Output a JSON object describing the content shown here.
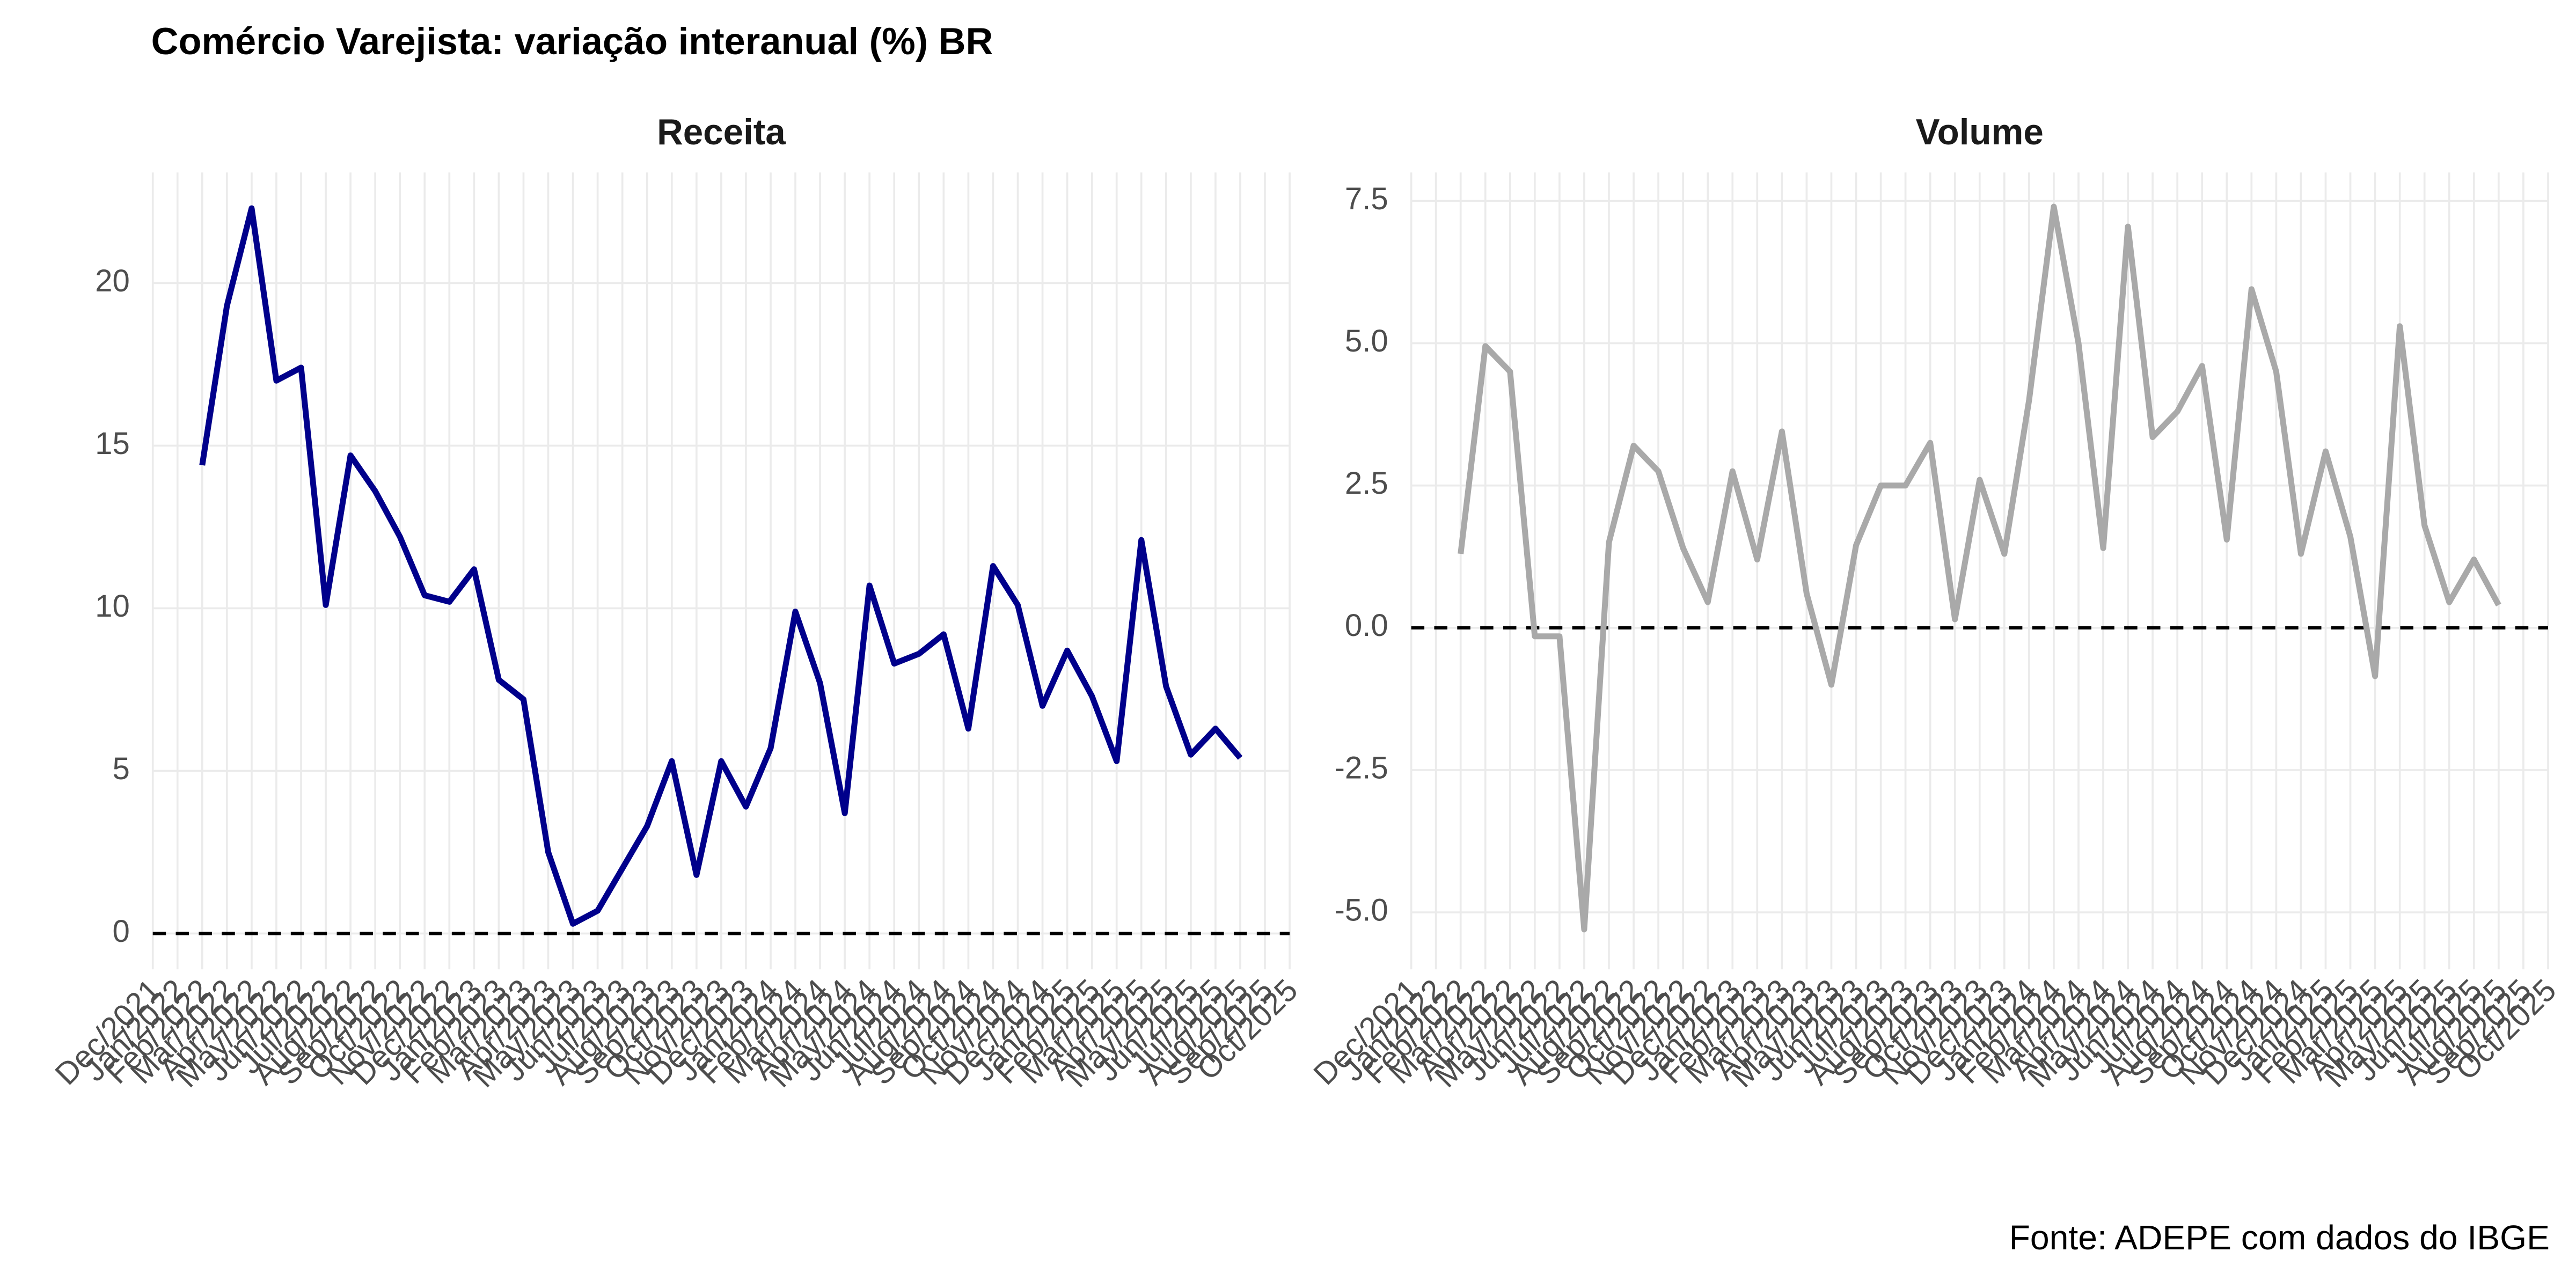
{
  "title": "Comércio Varejista: variação interanual (%) BR",
  "caption": "Fonte: ADEPE com dados do IBGE",
  "chart_data": [
    {
      "type": "line",
      "title": "Receita",
      "color": "#00008B",
      "x": [
        "Feb/2022",
        "Mar/2022",
        "Apr/2022",
        "May/2022",
        "Jun/2022",
        "Jul/2022",
        "Aug/2022",
        "Sep/2022",
        "Oct/2022",
        "Nov/2022",
        "Dec/2022",
        "Jan/2023",
        "Feb/2023",
        "Mar/2023",
        "Apr/2023",
        "May/2023",
        "Jun/2023",
        "Jul/2023",
        "Aug/2023",
        "Sep/2023",
        "Oct/2023",
        "Nov/2023",
        "Dec/2023",
        "Jan/2024",
        "Feb/2024",
        "Mar/2024",
        "Apr/2024",
        "May/2024",
        "Jun/2024",
        "Jul/2024",
        "Aug/2024",
        "Sep/2024",
        "Oct/2024",
        "Nov/2024",
        "Dec/2024",
        "Jan/2025",
        "Feb/2025",
        "Mar/2025",
        "Apr/2025",
        "May/2025",
        "Jun/2025",
        "Jul/2025",
        "Aug/2025"
      ],
      "values": [
        14.4,
        19.3,
        22.3,
        17.0,
        17.4,
        10.1,
        14.7,
        13.6,
        12.2,
        10.4,
        10.2,
        11.2,
        7.8,
        7.2,
        2.5,
        0.3,
        0.7,
        2.0,
        3.3,
        5.3,
        1.8,
        5.3,
        3.9,
        5.7,
        9.9,
        7.7,
        3.7,
        10.7,
        8.3,
        8.6,
        9.2,
        6.3,
        11.3,
        10.1,
        7.0,
        8.7,
        7.3,
        5.3,
        12.1,
        7.6,
        5.5,
        6.3,
        5.4
      ],
      "xticks": [
        "Dec/2021",
        "Jan/2022",
        "Feb/2022",
        "Mar/2022",
        "Apr/2022",
        "May/2022",
        "Jun/2022",
        "Jul/2022",
        "Aug/2022",
        "Sep/2022",
        "Oct/2022",
        "Nov/2022",
        "Dec/2022",
        "Jan/2023",
        "Feb/2023",
        "Mar/2023",
        "Apr/2023",
        "May/2023",
        "Jun/2023",
        "Jul/2023",
        "Aug/2023",
        "Sep/2023",
        "Oct/2023",
        "Nov/2023",
        "Dec/2023",
        "Jan/2024",
        "Feb/2024",
        "Mar/2024",
        "Apr/2024",
        "May/2024",
        "Jun/2024",
        "Jul/2024",
        "Aug/2024",
        "Sep/2024",
        "Oct/2024",
        "Nov/2024",
        "Dec/2024",
        "Jan/2025",
        "Feb/2025",
        "Mar/2025",
        "Apr/2025",
        "May/2025",
        "Jun/2025",
        "Jul/2025",
        "Aug/2025",
        "Sep/2025",
        "Oct/2025"
      ],
      "ylim": [
        -1.1,
        23.4
      ],
      "yticks": [
        0,
        5,
        10,
        15,
        20
      ],
      "hline": 0,
      "grid": true
    },
    {
      "type": "line",
      "title": "Volume",
      "color": "#A9A9A9",
      "x": [
        "Feb/2022",
        "Mar/2022",
        "Apr/2022",
        "May/2022",
        "Jun/2022",
        "Jul/2022",
        "Aug/2022",
        "Sep/2022",
        "Oct/2022",
        "Nov/2022",
        "Dec/2022",
        "Jan/2023",
        "Feb/2023",
        "Mar/2023",
        "Apr/2023",
        "May/2023",
        "Jun/2023",
        "Jul/2023",
        "Aug/2023",
        "Sep/2023",
        "Oct/2023",
        "Nov/2023",
        "Dec/2023",
        "Jan/2024",
        "Feb/2024",
        "Mar/2024",
        "Apr/2024",
        "May/2024",
        "Jun/2024",
        "Jul/2024",
        "Aug/2024",
        "Sep/2024",
        "Oct/2024",
        "Nov/2024",
        "Dec/2024",
        "Jan/2025",
        "Feb/2025",
        "Mar/2025",
        "Apr/2025",
        "May/2025",
        "Jun/2025",
        "Jul/2025",
        "Aug/2025"
      ],
      "values": [
        1.3,
        4.95,
        4.5,
        -0.15,
        -0.15,
        -5.3,
        1.5,
        3.2,
        2.75,
        1.4,
        0.45,
        2.75,
        1.2,
        3.45,
        0.6,
        -1.0,
        1.45,
        2.5,
        2.5,
        3.25,
        0.15,
        2.6,
        1.3,
        4.0,
        7.4,
        5.0,
        1.4,
        7.05,
        3.35,
        3.8,
        4.6,
        1.55,
        5.95,
        4.5,
        1.3,
        3.1,
        1.6,
        -0.85,
        5.3,
        1.8,
        0.45,
        1.2,
        0.4
      ],
      "xticks": [
        "Dec/2021",
        "Jan/2022",
        "Feb/2022",
        "Mar/2022",
        "Apr/2022",
        "May/2022",
        "Jun/2022",
        "Jul/2022",
        "Aug/2022",
        "Sep/2022",
        "Oct/2022",
        "Nov/2022",
        "Dec/2022",
        "Jan/2023",
        "Feb/2023",
        "Mar/2023",
        "Apr/2023",
        "May/2023",
        "Jun/2023",
        "Jul/2023",
        "Aug/2023",
        "Sep/2023",
        "Oct/2023",
        "Nov/2023",
        "Dec/2023",
        "Jan/2024",
        "Feb/2024",
        "Mar/2024",
        "Apr/2024",
        "May/2024",
        "Jun/2024",
        "Jul/2024",
        "Aug/2024",
        "Sep/2024",
        "Oct/2024",
        "Nov/2024",
        "Dec/2024",
        "Jan/2025",
        "Feb/2025",
        "Mar/2025",
        "Apr/2025",
        "May/2025",
        "Jun/2025",
        "Jul/2025",
        "Aug/2025",
        "Sep/2025",
        "Oct/2025"
      ],
      "ylim": [
        -6.0,
        8.0
      ],
      "yticks": [
        {
          "value": -5.0,
          "label": "-5.0"
        },
        -2.5,
        {
          "value": 0,
          "label": "0.0"
        },
        2.5,
        {
          "value": 5,
          "label": "5.0"
        },
        7.5
      ],
      "hline": 0,
      "grid": true
    }
  ]
}
